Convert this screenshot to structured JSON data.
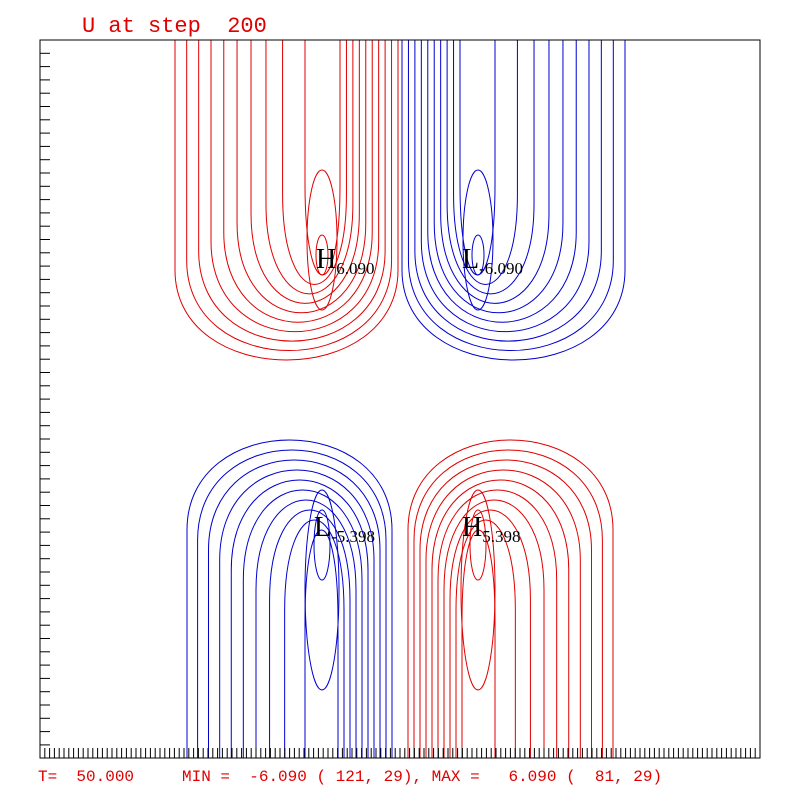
{
  "title": "U at step  200",
  "footer": "T=  50.000     MIN =  -6.090 ( 121, 29), MAX =   6.090 (  81, 29)",
  "extrema": [
    {
      "letter": "H",
      "value": "6.090"
    },
    {
      "letter": "L",
      "value": "-6.090"
    },
    {
      "letter": "L",
      "value": "-5.398"
    },
    {
      "letter": "H",
      "value": "5.398"
    }
  ]
}
